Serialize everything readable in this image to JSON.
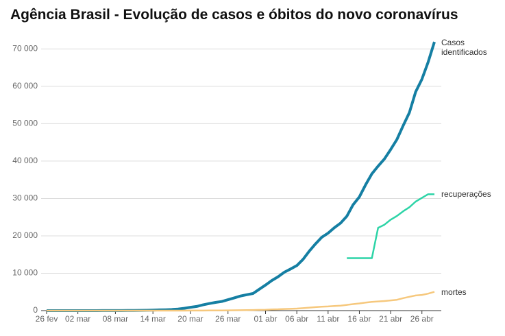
{
  "chart_data": {
    "type": "line",
    "title": "Agência Brasil - Evolução de casos e óbitos do novo coronavírus",
    "categories": [
      "26 fev",
      null,
      null,
      null,
      null,
      "02 mar",
      null,
      null,
      null,
      null,
      null,
      "08 mar",
      null,
      null,
      null,
      null,
      null,
      "14 mar",
      null,
      null,
      null,
      null,
      null,
      "20 mar",
      null,
      null,
      null,
      null,
      null,
      "26 mar",
      null,
      null,
      null,
      null,
      null,
      "01 abr",
      null,
      null,
      null,
      null,
      "06 abr",
      null,
      null,
      null,
      null,
      "11 abr",
      null,
      null,
      null,
      null,
      "16 abr",
      null,
      null,
      null,
      null,
      "21 abr",
      null,
      null,
      null,
      null,
      "26 abr",
      null,
      null
    ],
    "series": [
      {
        "name": "Casos identificados",
        "color": "#157fa3",
        "values": [
          1,
          1,
          1,
          2,
          2,
          2,
          2,
          3,
          8,
          13,
          19,
          25,
          25,
          34,
          52,
          77,
          98,
          121,
          200,
          234,
          291,
          428,
          621,
          904,
          1128,
          1546,
          1891,
          2201,
          2433,
          2915,
          3417,
          3904,
          4256,
          4579,
          5717,
          6836,
          8044,
          9056,
          10278,
          11130,
          12056,
          13717,
          15927,
          17857,
          19638,
          20727,
          22169,
          23430,
          25262,
          28320,
          30425,
          33682,
          36599,
          38654,
          40581,
          43079,
          45757,
          49492,
          52995,
          58509,
          61888,
          66501,
          71886
        ]
      },
      {
        "name": "recuperações",
        "color": "#2dd4a7",
        "values": [
          null,
          null,
          null,
          null,
          null,
          null,
          null,
          null,
          null,
          null,
          null,
          null,
          null,
          null,
          null,
          null,
          null,
          null,
          null,
          null,
          null,
          null,
          null,
          null,
          null,
          null,
          null,
          null,
          null,
          null,
          null,
          null,
          null,
          null,
          null,
          null,
          null,
          null,
          null,
          null,
          null,
          null,
          null,
          null,
          null,
          null,
          null,
          null,
          14026,
          14026,
          14026,
          14026,
          14026,
          22130,
          22991,
          24325,
          25318,
          26573,
          27655,
          29160,
          30152,
          31142,
          31142
        ]
      },
      {
        "name": "mortes",
        "color": "#f6c87d",
        "values": [
          0,
          0,
          0,
          0,
          0,
          0,
          0,
          0,
          0,
          0,
          0,
          0,
          0,
          0,
          0,
          0,
          0,
          0,
          0,
          0,
          1,
          4,
          7,
          11,
          18,
          25,
          34,
          46,
          57,
          77,
          92,
          111,
          136,
          159,
          201,
          240,
          324,
          359,
          445,
          486,
          553,
          667,
          800,
          941,
          1056,
          1124,
          1223,
          1328,
          1532,
          1736,
          1924,
          2141,
          2354,
          2462,
          2575,
          2741,
          2906,
          3331,
          3704,
          4057,
          4205,
          4543,
          5017
        ]
      }
    ],
    "ylim": [
      0,
      73000
    ],
    "yticks": [
      0,
      {
        "value": 10000,
        "label": "10 000"
      },
      {
        "value": 20000,
        "label": "20 000"
      },
      {
        "value": 30000,
        "label": "30 000"
      },
      {
        "value": 40000,
        "label": "40 000"
      },
      {
        "value": 50000,
        "label": "50 000"
      },
      {
        "value": 60000,
        "label": "60 000"
      },
      {
        "value": 70000,
        "label": "70 000"
      }
    ],
    "grid": true
  }
}
